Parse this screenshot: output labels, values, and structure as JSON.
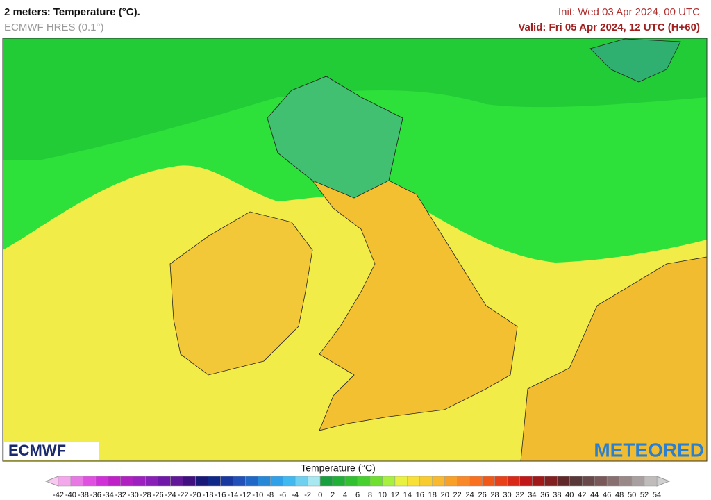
{
  "header": {
    "title": "2 meters: Temperature (°C).",
    "subtitle": "ECMWF HRES (0.1°)",
    "init": "Init: Wed 03 Apr 2024, 00 UTC",
    "valid": "Valid: Fri 05 Apr 2024, 12 UTC (H+60)"
  },
  "logos": {
    "left": "ECMWF",
    "right": "METEORED"
  },
  "legend": {
    "title": "Temperature (°C)",
    "ticks": [
      -42,
      -40,
      -38,
      -36,
      -34,
      -32,
      -30,
      -28,
      -26,
      -24,
      -22,
      -20,
      -18,
      -16,
      -14,
      -12,
      -10,
      -8,
      -6,
      -4,
      -2,
      0,
      2,
      4,
      6,
      8,
      10,
      12,
      14,
      16,
      18,
      20,
      22,
      24,
      26,
      28,
      30,
      32,
      34,
      36,
      38,
      40,
      42,
      44,
      46,
      48,
      50,
      52,
      54
    ],
    "under_color": "#f8c8f0",
    "over_color": "#d0d0d0",
    "colors": [
      "#f4a8ec",
      "#e878e4",
      "#e050e0",
      "#d030d8",
      "#c020c8",
      "#b020c0",
      "#9c20c0",
      "#8820b8",
      "#7018a8",
      "#601898",
      "#401080",
      "#181878",
      "#102888",
      "#1838a0",
      "#2050b8",
      "#2068c8",
      "#2888d8",
      "#30a0e8",
      "#40b8f0",
      "#70d0f0",
      "#a8e8f0",
      "#18a040",
      "#20b038",
      "#30c030",
      "#48d030",
      "#70e030",
      "#a8f040",
      "#e8f040",
      "#f8e038",
      "#f8cc30",
      "#f8b830",
      "#f8a028",
      "#f88828",
      "#f87020",
      "#f05818",
      "#e84018",
      "#d82818",
      "#c01818",
      "#a01818",
      "#802020",
      "#602828",
      "#583838",
      "#684848",
      "#785858",
      "#887070",
      "#988888",
      "#a8a0a0",
      "#c0bcbc"
    ]
  }
}
